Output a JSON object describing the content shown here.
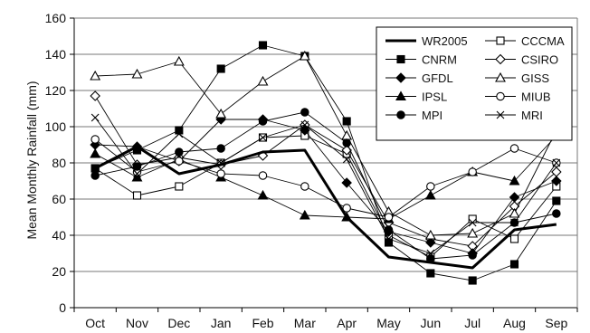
{
  "chart_data": {
    "type": "line",
    "title": "",
    "xlabel": "",
    "ylabel": "Mean Monthly Rainfall (mm)",
    "ylim": [
      0,
      160
    ],
    "yticks": [
      0,
      20,
      40,
      60,
      80,
      100,
      120,
      140,
      160
    ],
    "grid": "horizontal",
    "legend_position": "top-right",
    "categories": [
      "Oct",
      "Nov",
      "Dec",
      "Jan",
      "Feb",
      "Mar",
      "Apr",
      "May",
      "Jun",
      "Jul",
      "Aug",
      "Sep"
    ],
    "series": [
      {
        "name": "WR2005",
        "marker": "none",
        "bold": true,
        "values": [
          77,
          89,
          74,
          79,
          86,
          87,
          50,
          28,
          25,
          22,
          43,
          46
        ]
      },
      {
        "name": "CCCMA",
        "marker": "square-open",
        "values": [
          77,
          62,
          67,
          80,
          94,
          95,
          85,
          40,
          28,
          49,
          38,
          67
        ]
      },
      {
        "name": "CNRM",
        "marker": "square-filled",
        "values": [
          77,
          87,
          98,
          132,
          145,
          139,
          103,
          36,
          19,
          15,
          24,
          59
        ]
      },
      {
        "name": "CSIRO",
        "marker": "diamond-open",
        "values": [
          117,
          79,
          83,
          79,
          84,
          101,
          87,
          47,
          38,
          34,
          56,
          75
        ]
      },
      {
        "name": "GFDL",
        "marker": "diamond-filled",
        "values": [
          90,
          89,
          81,
          104,
          104,
          98,
          69,
          42,
          36,
          30,
          61,
          70
        ]
      },
      {
        "name": "GISS",
        "marker": "triangle-open",
        "values": [
          128,
          129,
          136,
          107,
          125,
          139,
          95,
          53,
          40,
          41,
          52,
          98
        ]
      },
      {
        "name": "IPSL",
        "marker": "triangle-filled",
        "values": [
          85,
          72,
          82,
          72,
          62,
          51,
          50,
          49,
          62,
          75,
          70,
          95
        ]
      },
      {
        "name": "MIUB",
        "marker": "circle-open",
        "values": [
          93,
          75,
          81,
          74,
          73,
          67,
          55,
          50,
          67,
          75,
          88,
          80
        ]
      },
      {
        "name": "MPI",
        "marker": "circle-filled",
        "values": [
          73,
          78,
          86,
          88,
          103,
          108,
          91,
          43,
          27,
          29,
          47,
          52
        ]
      },
      {
        "name": "MRI",
        "marker": "x",
        "values": [
          105,
          74,
          96,
          80,
          94,
          101,
          82,
          38,
          30,
          47,
          47,
          80
        ]
      }
    ]
  }
}
